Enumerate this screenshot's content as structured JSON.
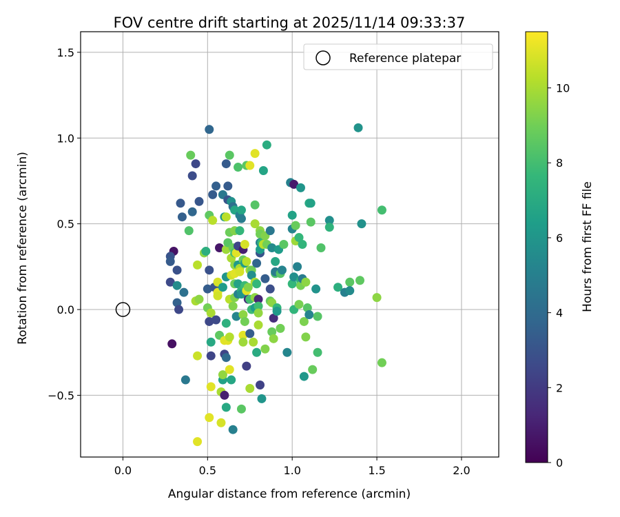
{
  "chart_data": {
    "type": "scatter",
    "title": "FOV centre drift starting at 2025/11/14 09:33:37",
    "xlabel": "Angular distance from reference (arcmin)",
    "ylabel": "Rotation from reference (arcmin)",
    "xlim": [
      -0.25,
      2.22
    ],
    "ylim": [
      -0.86,
      1.62
    ],
    "xticks": [
      0.0,
      0.5,
      1.0,
      1.5,
      2.0
    ],
    "xtick_labels": [
      "0.0",
      "0.5",
      "1.0",
      "1.5",
      "2.0"
    ],
    "yticks": [
      -0.5,
      0.0,
      0.5,
      1.0,
      1.5
    ],
    "ytick_labels": [
      "−0.5",
      "0.0",
      "0.5",
      "1.0",
      "1.5"
    ],
    "grid": true,
    "legend": {
      "position": "top-right",
      "label": "Reference platepar"
    },
    "reference_point": {
      "x": 0.0,
      "y": 0.0
    },
    "colorbar": {
      "label": "Hours from first FF file",
      "colormap": "viridis",
      "range": [
        0,
        11.5
      ],
      "ticks": [
        0,
        2,
        4,
        6,
        8,
        10
      ],
      "tick_labels": [
        "0",
        "2",
        "4",
        "6",
        "8",
        "10"
      ]
    },
    "colors": {
      "viridis": [
        "#440154",
        "#482878",
        "#3e4989",
        "#31688e",
        "#26828e",
        "#1f9e89",
        "#35b779",
        "#6ece58",
        "#b5de2b",
        "#fde725"
      ],
      "grid": "#b0b0b0",
      "axes": "#000000"
    },
    "points": [
      {
        "x": 0.29,
        "y": -0.2,
        "t": 0.5
      },
      {
        "x": 0.3,
        "y": 0.34,
        "t": 0.6
      },
      {
        "x": 0.28,
        "y": 0.31,
        "t": 3.0
      },
      {
        "x": 0.28,
        "y": 0.28,
        "t": 3.3
      },
      {
        "x": 0.28,
        "y": 0.16,
        "t": 2.6
      },
      {
        "x": 0.32,
        "y": 0.23,
        "t": 2.9
      },
      {
        "x": 0.32,
        "y": 0.14,
        "t": 5.5
      },
      {
        "x": 0.32,
        "y": 0.04,
        "t": 3.6
      },
      {
        "x": 0.33,
        "y": 0.0,
        "t": 2.5
      },
      {
        "x": 0.34,
        "y": 0.62,
        "t": 3.2
      },
      {
        "x": 0.35,
        "y": 0.54,
        "t": 3.5
      },
      {
        "x": 0.36,
        "y": 0.1,
        "t": 4.3
      },
      {
        "x": 0.37,
        "y": -0.41,
        "t": 4.6
      },
      {
        "x": 0.39,
        "y": 0.46,
        "t": 8.3
      },
      {
        "x": 0.4,
        "y": 0.9,
        "t": 8.8
      },
      {
        "x": 0.41,
        "y": 0.57,
        "t": 3.8
      },
      {
        "x": 0.41,
        "y": 0.78,
        "t": 2.7
      },
      {
        "x": 0.43,
        "y": 0.85,
        "t": 2.5
      },
      {
        "x": 0.43,
        "y": 0.05,
        "t": 10.0
      },
      {
        "x": 0.44,
        "y": 0.26,
        "t": 10.3
      },
      {
        "x": 0.44,
        "y": -0.27,
        "t": 10.6
      },
      {
        "x": 0.45,
        "y": 0.63,
        "t": 3.1
      },
      {
        "x": 0.45,
        "y": 0.06,
        "t": 9.5
      },
      {
        "x": 0.44,
        "y": -0.77,
        "t": 11.0
      },
      {
        "x": 0.48,
        "y": 0.33,
        "t": 9.5
      },
      {
        "x": 0.49,
        "y": 0.34,
        "t": 7.2
      },
      {
        "x": 0.5,
        "y": 0.12,
        "t": 3.4
      },
      {
        "x": 0.5,
        "y": 0.01,
        "t": 9.0
      },
      {
        "x": 0.51,
        "y": 1.05,
        "t": 3.8
      },
      {
        "x": 0.51,
        "y": 0.55,
        "t": 8.6
      },
      {
        "x": 0.51,
        "y": 0.23,
        "t": 2.9
      },
      {
        "x": 0.51,
        "y": -0.07,
        "t": 2.5
      },
      {
        "x": 0.51,
        "y": -0.63,
        "t": 11.0
      },
      {
        "x": 0.52,
        "y": -0.19,
        "t": 6.9
      },
      {
        "x": 0.52,
        "y": -0.27,
        "t": 2.4
      },
      {
        "x": 0.52,
        "y": -0.45,
        "t": 11.0
      },
      {
        "x": 0.52,
        "y": -0.02,
        "t": 10.0
      },
      {
        "x": 0.53,
        "y": 0.67,
        "t": 3.3
      },
      {
        "x": 0.53,
        "y": 0.52,
        "t": 10.3
      },
      {
        "x": 0.54,
        "y": 0.13,
        "t": 3.0
      },
      {
        "x": 0.55,
        "y": 0.72,
        "t": 3.5
      },
      {
        "x": 0.55,
        "y": -0.06,
        "t": 2.6
      },
      {
        "x": 0.56,
        "y": 0.16,
        "t": 10.8
      },
      {
        "x": 0.56,
        "y": 0.1,
        "t": 11.0
      },
      {
        "x": 0.56,
        "y": 0.08,
        "t": 10.7
      },
      {
        "x": 0.57,
        "y": 0.36,
        "t": 0.7
      },
      {
        "x": 0.57,
        "y": -0.15,
        "t": 8.6
      },
      {
        "x": 0.58,
        "y": -0.48,
        "t": 10.0
      },
      {
        "x": 0.58,
        "y": -0.66,
        "t": 10.8
      },
      {
        "x": 0.59,
        "y": 0.67,
        "t": 4.6
      },
      {
        "x": 0.59,
        "y": 0.13,
        "t": 6.3
      },
      {
        "x": 0.59,
        "y": -0.41,
        "t": 6.6
      },
      {
        "x": 0.59,
        "y": -0.38,
        "t": 9.6
      },
      {
        "x": 0.6,
        "y": 0.54,
        "t": 6.1
      },
      {
        "x": 0.6,
        "y": -0.18,
        "t": 11.0
      },
      {
        "x": 0.6,
        "y": -0.26,
        "t": 2.4
      },
      {
        "x": 0.6,
        "y": -0.5,
        "t": 1.0
      },
      {
        "x": 0.61,
        "y": 0.85,
        "t": 3.3
      },
      {
        "x": 0.61,
        "y": 0.54,
        "t": 10.3
      },
      {
        "x": 0.61,
        "y": 0.35,
        "t": 9.8
      },
      {
        "x": 0.61,
        "y": 0.19,
        "t": 6.0
      },
      {
        "x": 0.61,
        "y": -0.08,
        "t": 7.3
      },
      {
        "x": 0.61,
        "y": -0.28,
        "t": 4.0
      },
      {
        "x": 0.61,
        "y": -0.57,
        "t": 6.9
      },
      {
        "x": 0.62,
        "y": 0.72,
        "t": 3.3
      },
      {
        "x": 0.62,
        "y": 0.64,
        "t": 3.0
      },
      {
        "x": 0.62,
        "y": 0.39,
        "t": 8.5
      },
      {
        "x": 0.62,
        "y": -0.18,
        "t": 11.0
      },
      {
        "x": 0.63,
        "y": 0.9,
        "t": 8.5
      },
      {
        "x": 0.63,
        "y": 0.45,
        "t": 8.9
      },
      {
        "x": 0.63,
        "y": 0.06,
        "t": 10.3
      },
      {
        "x": 0.63,
        "y": -0.16,
        "t": 10.2
      },
      {
        "x": 0.63,
        "y": -0.35,
        "t": 11.0
      },
      {
        "x": 0.64,
        "y": 0.63,
        "t": 5.8
      },
      {
        "x": 0.64,
        "y": 0.3,
        "t": 10.0
      },
      {
        "x": 0.64,
        "y": 0.2,
        "t": 10.7
      },
      {
        "x": 0.64,
        "y": -0.41,
        "t": 6.8
      },
      {
        "x": 0.65,
        "y": 0.6,
        "t": 4.3
      },
      {
        "x": 0.65,
        "y": 0.36,
        "t": 8.8
      },
      {
        "x": 0.65,
        "y": 0.02,
        "t": 9.3
      },
      {
        "x": 0.65,
        "y": -0.7,
        "t": 5.0
      },
      {
        "x": 0.66,
        "y": 0.58,
        "t": 6.8
      },
      {
        "x": 0.66,
        "y": 0.46,
        "t": 9.3
      },
      {
        "x": 0.66,
        "y": 0.33,
        "t": 8.0
      },
      {
        "x": 0.66,
        "y": 0.26,
        "t": 9.6
      },
      {
        "x": 0.66,
        "y": 0.21,
        "t": 11.0
      },
      {
        "x": 0.66,
        "y": 0.15,
        "t": 8.8
      },
      {
        "x": 0.66,
        "y": 0.07,
        "t": 9.3
      },
      {
        "x": 0.67,
        "y": 0.33,
        "t": 11.0
      },
      {
        "x": 0.67,
        "y": -0.04,
        "t": 5.3
      },
      {
        "x": 0.68,
        "y": 0.83,
        "t": 8.2
      },
      {
        "x": 0.68,
        "y": 0.37,
        "t": 2.4
      },
      {
        "x": 0.68,
        "y": 0.26,
        "t": 6.2
      },
      {
        "x": 0.68,
        "y": 0.15,
        "t": 6.6
      },
      {
        "x": 0.68,
        "y": 0.09,
        "t": 5.1
      },
      {
        "x": 0.69,
        "y": 0.55,
        "t": 5.0
      },
      {
        "x": 0.69,
        "y": 0.46,
        "t": 7.6
      },
      {
        "x": 0.69,
        "y": 0.24,
        "t": 10.0
      },
      {
        "x": 0.69,
        "y": 0.22,
        "t": 10.8
      },
      {
        "x": 0.7,
        "y": -0.58,
        "t": 8.5
      },
      {
        "x": 0.7,
        "y": 0.58,
        "t": 6.8
      },
      {
        "x": 0.7,
        "y": 0.53,
        "t": 4.8
      },
      {
        "x": 0.7,
        "y": 0.11,
        "t": 7.3
      },
      {
        "x": 0.7,
        "y": 0.09,
        "t": 6.0
      },
      {
        "x": 0.71,
        "y": 0.35,
        "t": 1.0
      },
      {
        "x": 0.71,
        "y": 0.29,
        "t": 8.8
      },
      {
        "x": 0.71,
        "y": -0.03,
        "t": 9.5
      },
      {
        "x": 0.71,
        "y": -0.15,
        "t": 11.0
      },
      {
        "x": 0.71,
        "y": -0.19,
        "t": 9.8
      },
      {
        "x": 0.72,
        "y": 0.14,
        "t": 7.8
      },
      {
        "x": 0.72,
        "y": 0.38,
        "t": 10.8
      },
      {
        "x": 0.72,
        "y": 0.27,
        "t": 6.3
      },
      {
        "x": 0.72,
        "y": -0.07,
        "t": 9.0
      },
      {
        "x": 0.73,
        "y": 0.28,
        "t": 10.3
      },
      {
        "x": 0.73,
        "y": 0.11,
        "t": 11.0
      },
      {
        "x": 0.73,
        "y": -0.33,
        "t": 2.2
      },
      {
        "x": 0.73,
        "y": 0.84,
        "t": 8.5
      },
      {
        "x": 0.74,
        "y": 0.06,
        "t": 1.5
      },
      {
        "x": 0.74,
        "y": 0.13,
        "t": 9.3
      },
      {
        "x": 0.75,
        "y": 0.23,
        "t": 10.0
      },
      {
        "x": 0.75,
        "y": 0.84,
        "t": 11.0
      },
      {
        "x": 0.75,
        "y": 0.06,
        "t": 8.0
      },
      {
        "x": 0.75,
        "y": -0.14,
        "t": 3.4
      },
      {
        "x": 0.75,
        "y": -0.46,
        "t": 10.0
      },
      {
        "x": 0.76,
        "y": 0.23,
        "t": 9.0
      },
      {
        "x": 0.76,
        "y": 0.2,
        "t": 5.7
      },
      {
        "x": 0.76,
        "y": 0.0,
        "t": 7.8
      },
      {
        "x": 0.77,
        "y": -0.19,
        "t": 10.0
      },
      {
        "x": 0.78,
        "y": 0.5,
        "t": 10.0
      },
      {
        "x": 0.78,
        "y": 0.16,
        "t": 10.0
      },
      {
        "x": 0.78,
        "y": 0.01,
        "t": 6.3
      },
      {
        "x": 0.78,
        "y": 0.91,
        "t": 11.0
      },
      {
        "x": 0.78,
        "y": 0.61,
        "t": 8.4
      },
      {
        "x": 0.78,
        "y": 0.07,
        "t": 9.5
      },
      {
        "x": 0.79,
        "y": 0.27,
        "t": 3.8
      },
      {
        "x": 0.79,
        "y": 0.15,
        "t": 7.6
      },
      {
        "x": 0.79,
        "y": -0.25,
        "t": 7.0
      },
      {
        "x": 0.8,
        "y": 0.06,
        "t": 1.2
      },
      {
        "x": 0.8,
        "y": 0.02,
        "t": 7.9
      },
      {
        "x": 0.8,
        "y": -0.02,
        "t": 9.6
      },
      {
        "x": 0.8,
        "y": -0.09,
        "t": 10.0
      },
      {
        "x": 0.81,
        "y": 0.46,
        "t": 9.5
      },
      {
        "x": 0.81,
        "y": 0.44,
        "t": 9.0
      },
      {
        "x": 0.81,
        "y": 0.39,
        "t": 5.0
      },
      {
        "x": 0.81,
        "y": 0.33,
        "t": 3.0
      },
      {
        "x": 0.81,
        "y": 0.35,
        "t": 6.4
      },
      {
        "x": 0.81,
        "y": -0.44,
        "t": 2.3
      },
      {
        "x": 0.82,
        "y": -0.52,
        "t": 6.0
      },
      {
        "x": 0.82,
        "y": 0.39,
        "t": 7.6
      },
      {
        "x": 0.83,
        "y": 0.81,
        "t": 6.7
      },
      {
        "x": 0.83,
        "y": 0.38,
        "t": 10.3
      },
      {
        "x": 0.84,
        "y": 0.43,
        "t": 9.3
      },
      {
        "x": 0.84,
        "y": 0.18,
        "t": 3.4
      },
      {
        "x": 0.84,
        "y": -0.23,
        "t": 9.3
      },
      {
        "x": 0.85,
        "y": 0.96,
        "t": 7.1
      },
      {
        "x": 0.85,
        "y": 0.38,
        "t": 9.0
      },
      {
        "x": 0.87,
        "y": 0.12,
        "t": 2.8
      },
      {
        "x": 0.87,
        "y": 0.46,
        "t": 4.6
      },
      {
        "x": 0.87,
        "y": 0.05,
        "t": 8.8
      },
      {
        "x": 0.88,
        "y": 0.36,
        "t": 5.5
      },
      {
        "x": 0.88,
        "y": 0.04,
        "t": 9.5
      },
      {
        "x": 0.88,
        "y": -0.13,
        "t": 8.8
      },
      {
        "x": 0.89,
        "y": -0.17,
        "t": 9.5
      },
      {
        "x": 0.89,
        "y": -0.05,
        "t": 1.5
      },
      {
        "x": 0.9,
        "y": 0.28,
        "t": 6.8
      },
      {
        "x": 0.9,
        "y": 0.21,
        "t": 8.2
      },
      {
        "x": 0.9,
        "y": 0.22,
        "t": 4.8
      },
      {
        "x": 0.91,
        "y": 0.01,
        "t": 7.6
      },
      {
        "x": 0.91,
        "y": -0.01,
        "t": 6.2
      },
      {
        "x": 0.92,
        "y": 0.35,
        "t": 6.3
      },
      {
        "x": 0.93,
        "y": -0.11,
        "t": 9.0
      },
      {
        "x": 0.93,
        "y": 0.21,
        "t": 8.4
      },
      {
        "x": 0.94,
        "y": 0.23,
        "t": 5.2
      },
      {
        "x": 0.95,
        "y": 0.38,
        "t": 8.5
      },
      {
        "x": 0.97,
        "y": -0.25,
        "t": 5.3
      },
      {
        "x": 0.99,
        "y": 0.74,
        "t": 6.3
      },
      {
        "x": 0.99,
        "y": 0.74,
        "t": 5.0
      },
      {
        "x": 1.0,
        "y": 0.47,
        "t": 5.2
      },
      {
        "x": 1.0,
        "y": 0.15,
        "t": 7.6
      },
      {
        "x": 1.0,
        "y": 0.55,
        "t": 6.6
      },
      {
        "x": 1.01,
        "y": 0.73,
        "t": 0.8
      },
      {
        "x": 1.01,
        "y": 0.19,
        "t": 5.7
      },
      {
        "x": 1.01,
        "y": 0.0,
        "t": 7.5
      },
      {
        "x": 1.02,
        "y": 0.49,
        "t": 8.8
      },
      {
        "x": 1.02,
        "y": 0.4,
        "t": 9.8
      },
      {
        "x": 1.03,
        "y": 0.25,
        "t": 5.1
      },
      {
        "x": 1.04,
        "y": 0.42,
        "t": 7.6
      },
      {
        "x": 1.04,
        "y": 0.03,
        "t": 9.1
      },
      {
        "x": 1.05,
        "y": 0.71,
        "t": 6.0
      },
      {
        "x": 1.05,
        "y": 0.17,
        "t": 7.4
      },
      {
        "x": 1.05,
        "y": 0.14,
        "t": 9.1
      },
      {
        "x": 1.06,
        "y": 0.18,
        "t": 4.8
      },
      {
        "x": 1.06,
        "y": 0.38,
        "t": 7.5
      },
      {
        "x": 1.07,
        "y": -0.39,
        "t": 6.1
      },
      {
        "x": 1.07,
        "y": -0.07,
        "t": 9.2
      },
      {
        "x": 1.08,
        "y": -0.16,
        "t": 9.3
      },
      {
        "x": 1.08,
        "y": 0.16,
        "t": 9.5
      },
      {
        "x": 1.09,
        "y": 0.01,
        "t": 8.4
      },
      {
        "x": 1.1,
        "y": 0.62,
        "t": 6.9
      },
      {
        "x": 1.1,
        "y": -0.03,
        "t": 5.2
      },
      {
        "x": 1.11,
        "y": 0.62,
        "t": 6.6
      },
      {
        "x": 1.11,
        "y": 0.51,
        "t": 8.5
      },
      {
        "x": 1.12,
        "y": -0.35,
        "t": 8.8
      },
      {
        "x": 1.14,
        "y": 0.12,
        "t": 5.9
      },
      {
        "x": 1.15,
        "y": -0.04,
        "t": 8.4
      },
      {
        "x": 1.15,
        "y": -0.25,
        "t": 8.0
      },
      {
        "x": 1.17,
        "y": 0.36,
        "t": 8.3
      },
      {
        "x": 1.22,
        "y": 0.52,
        "t": 5.7
      },
      {
        "x": 1.22,
        "y": 0.48,
        "t": 7.4
      },
      {
        "x": 1.27,
        "y": 0.13,
        "t": 7.2
      },
      {
        "x": 1.31,
        "y": 0.1,
        "t": 5.0
      },
      {
        "x": 1.34,
        "y": 0.16,
        "t": 8.5
      },
      {
        "x": 1.34,
        "y": 0.11,
        "t": 5.5
      },
      {
        "x": 1.39,
        "y": 1.06,
        "t": 5.9
      },
      {
        "x": 1.4,
        "y": 0.17,
        "t": 8.6
      },
      {
        "x": 1.41,
        "y": 0.5,
        "t": 5.8
      },
      {
        "x": 1.5,
        "y": 0.07,
        "t": 9.5
      },
      {
        "x": 1.53,
        "y": 0.58,
        "t": 8.0
      },
      {
        "x": 1.53,
        "y": -0.31,
        "t": 9.0
      }
    ]
  }
}
